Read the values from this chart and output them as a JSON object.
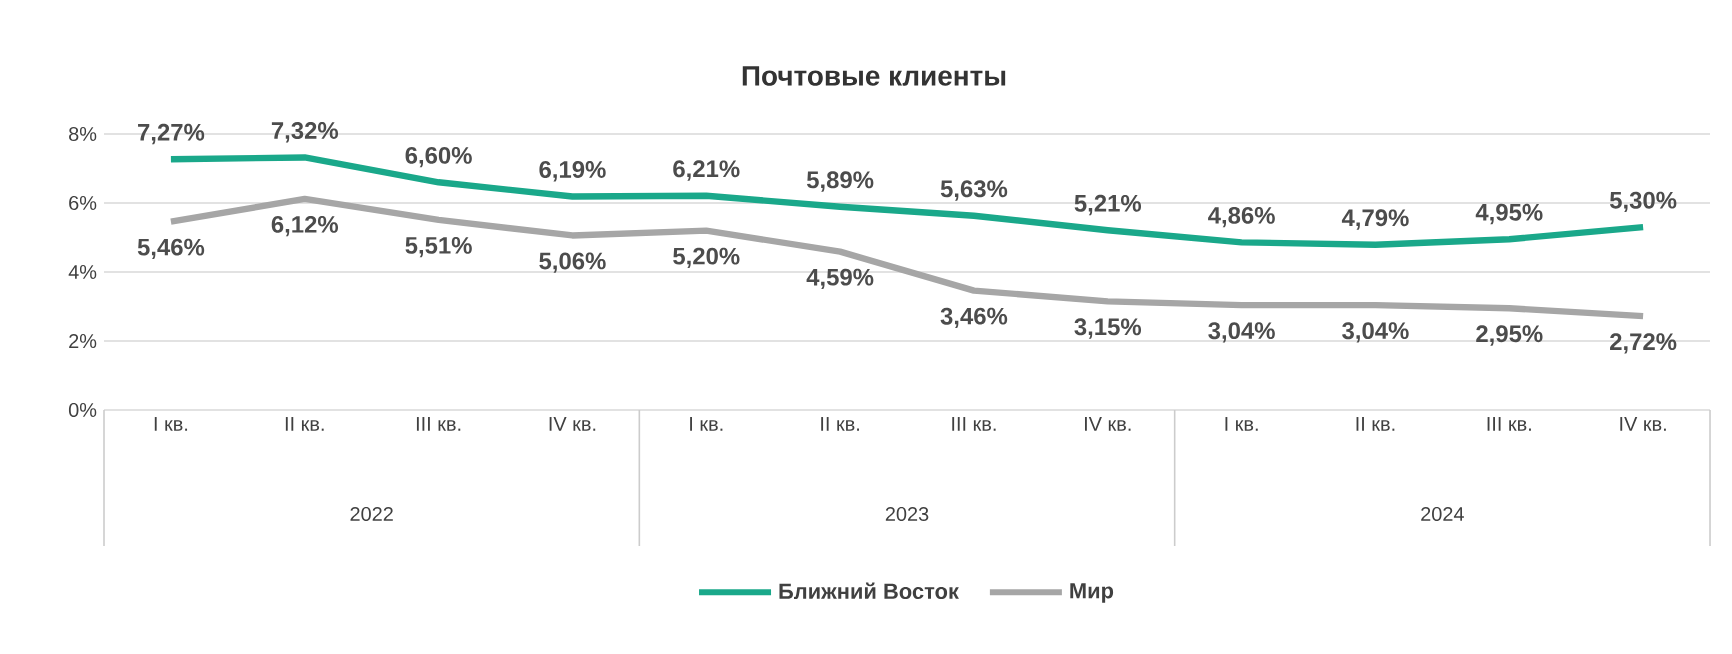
{
  "chart_data": {
    "type": "line",
    "title": "Почтовые клиенты",
    "categories": [
      "I кв.",
      "II кв.",
      "III кв.",
      "IV кв.",
      "I кв.",
      "II кв.",
      "III кв.",
      "IV кв.",
      "I кв.",
      "II кв.",
      "III кв.",
      "IV кв."
    ],
    "annotations": [
      "2022",
      "2023",
      "2024"
    ],
    "series": [
      {
        "name": "Ближний Восток",
        "color": "#1aa88a",
        "values": [
          7.27,
          7.32,
          6.6,
          6.19,
          6.21,
          5.89,
          5.63,
          5.21,
          4.86,
          4.79,
          4.95,
          5.3
        ],
        "value_labels": [
          "7,27%",
          "7,32%",
          "6,60%",
          "6,19%",
          "6,21%",
          "5,89%",
          "5,63%",
          "5,21%",
          "4,86%",
          "4,79%",
          "4,95%",
          "5,30%"
        ]
      },
      {
        "name": "Мир",
        "color": "#a6a6a6",
        "values": [
          5.46,
          6.12,
          5.51,
          5.06,
          5.2,
          4.59,
          3.46,
          3.15,
          3.04,
          3.04,
          2.95,
          2.72
        ],
        "value_labels": [
          "5,46%",
          "6,12%",
          "5,51%",
          "5,06%",
          "5,20%",
          "4,59%",
          "3,46%",
          "3,15%",
          "3,04%",
          "3,04%",
          "2,95%",
          "2,72%"
        ]
      }
    ],
    "ylim": [
      0,
      8
    ],
    "yticks": [
      {
        "value": 0,
        "label": "0%"
      },
      {
        "value": 2,
        "label": "2%"
      },
      {
        "value": 4,
        "label": "4%"
      },
      {
        "value": 6,
        "label": "6%"
      },
      {
        "value": 8,
        "label": "8%"
      }
    ],
    "grid": "y",
    "legend": "bottom",
    "marker": "none",
    "line_style": "solid"
  }
}
